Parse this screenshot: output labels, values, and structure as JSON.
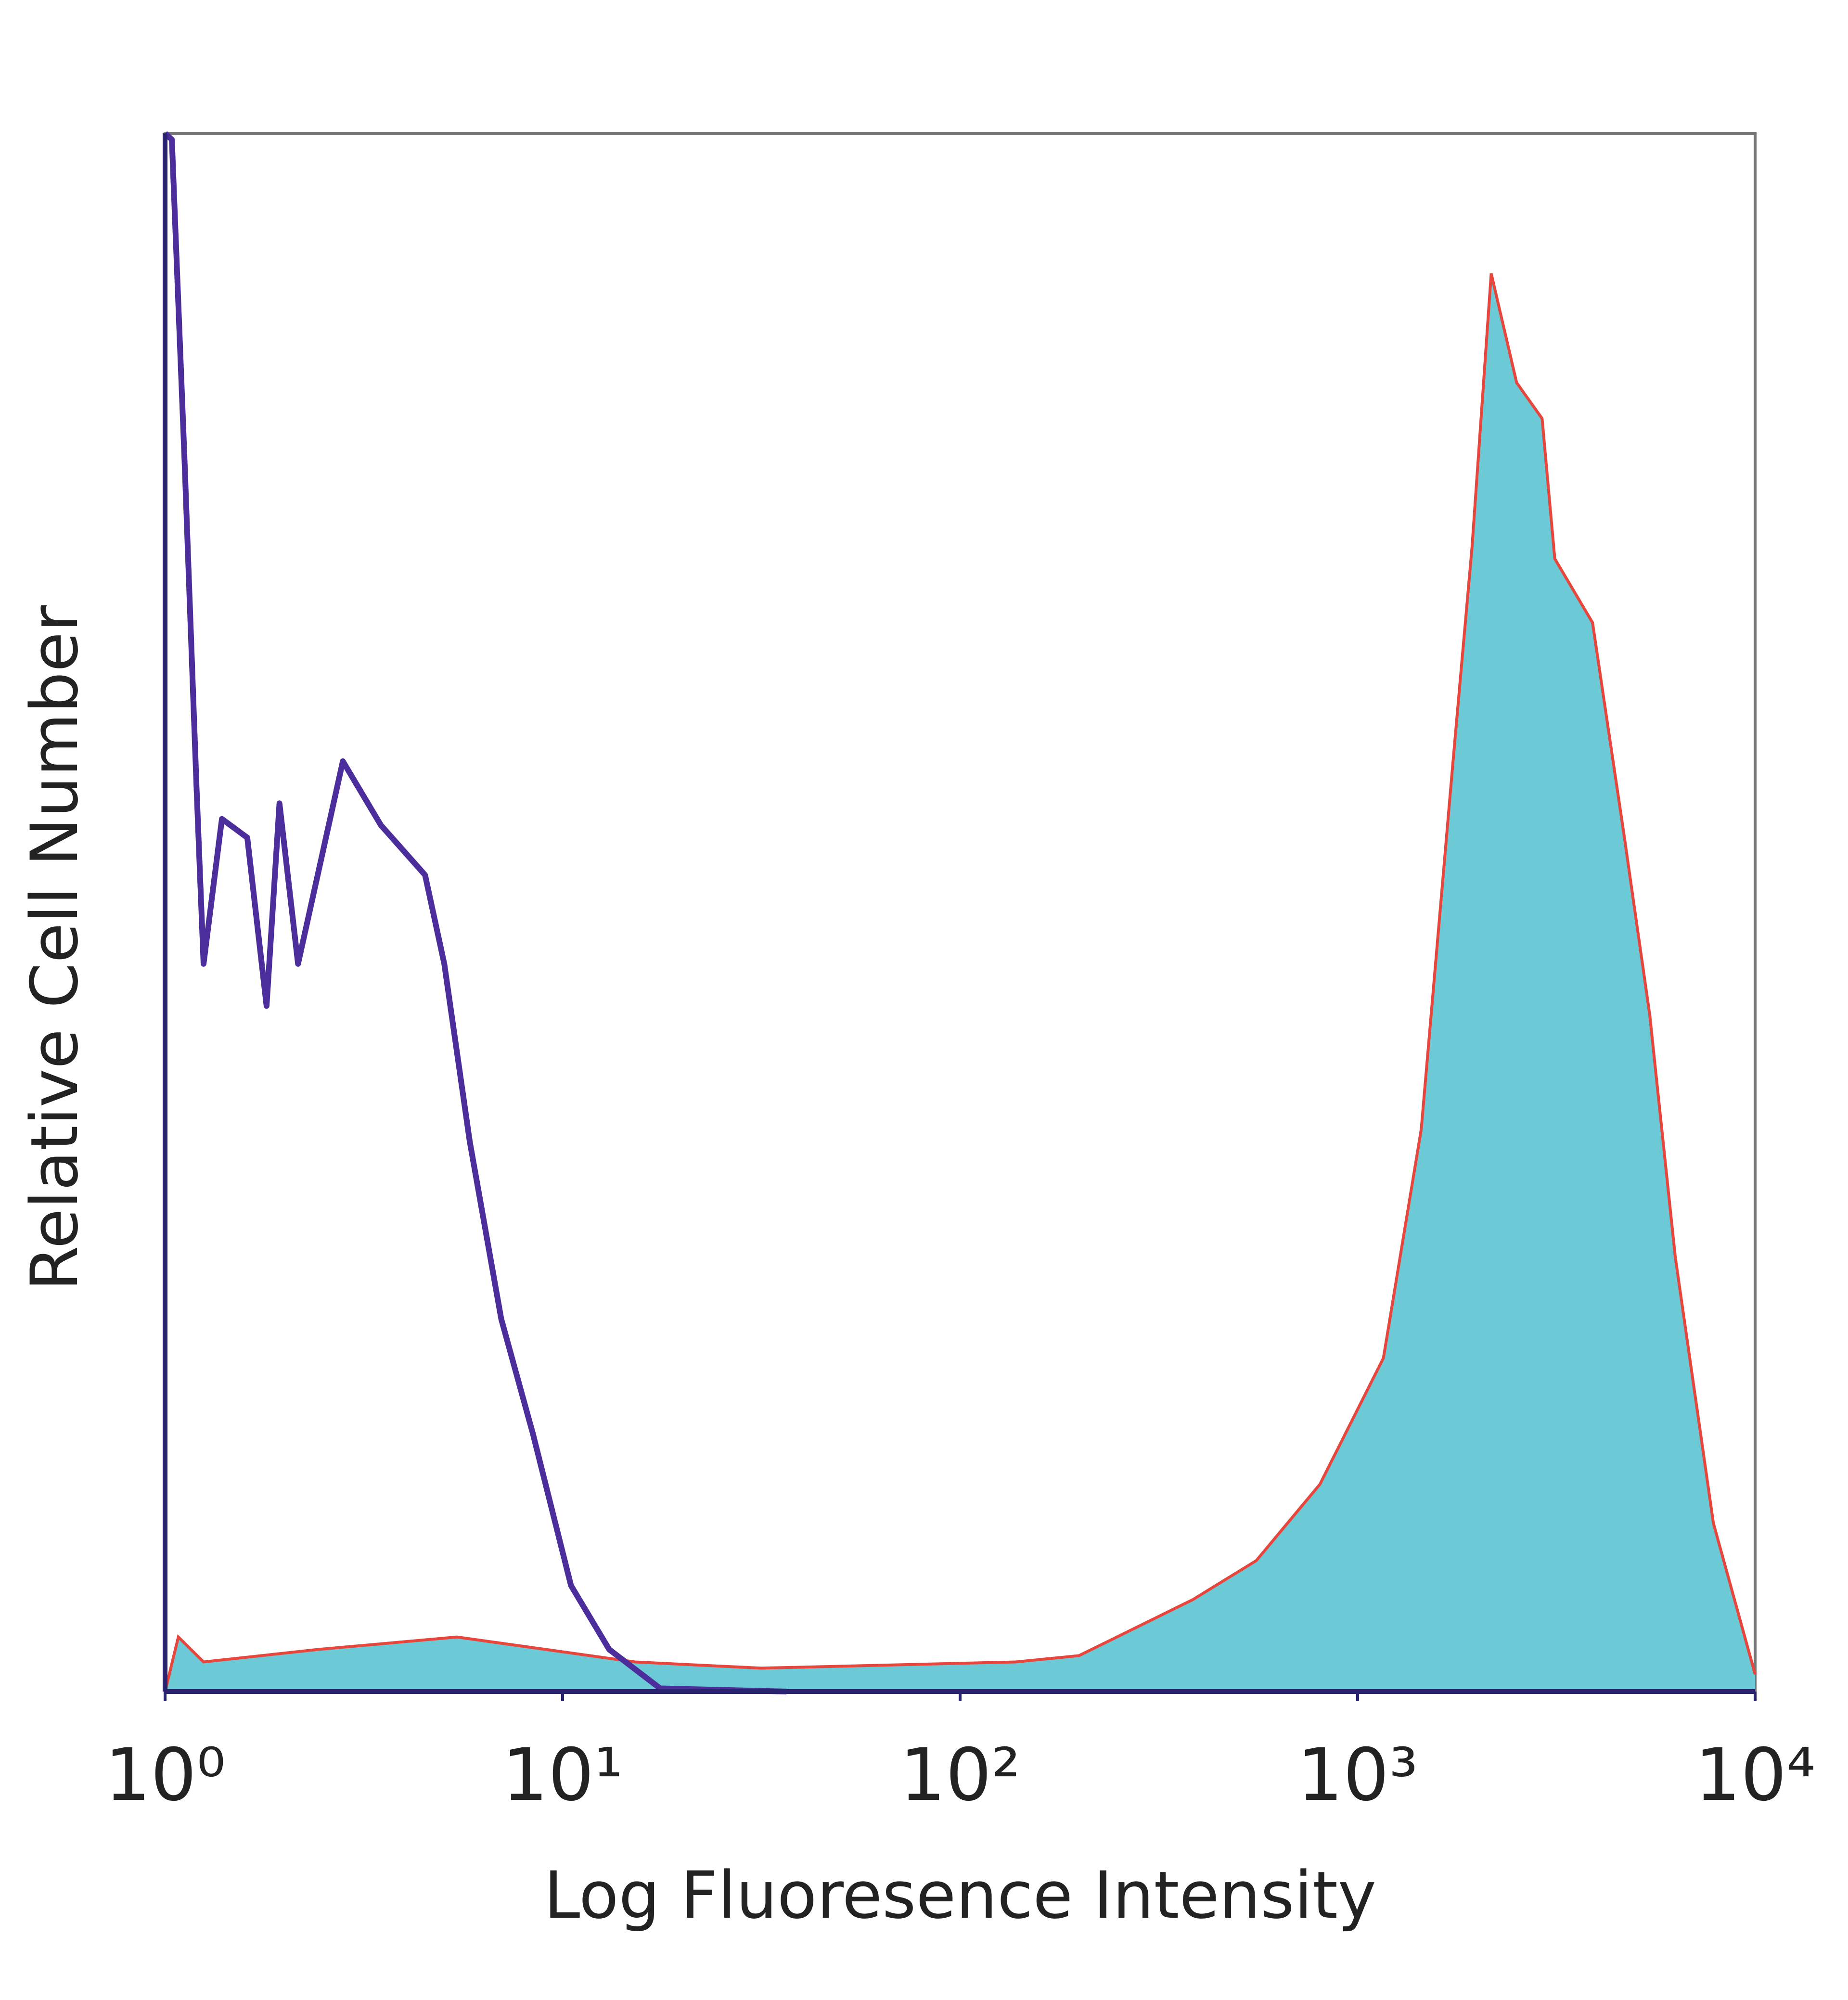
{
  "chart_data": {
    "type": "histogram-overlay",
    "xlabel": "Log Fluoresence Intensity",
    "ylabel": "Relative Cell Number",
    "xscale": "log",
    "xlim": [
      1,
      10000
    ],
    "xticks": [
      {
        "value": 1,
        "label": "10⁰"
      },
      {
        "value": 10,
        "label": "10¹"
      },
      {
        "value": 100,
        "label": "10²"
      },
      {
        "value": 1000,
        "label": "10³"
      },
      {
        "value": 10000,
        "label": "10⁴"
      }
    ],
    "ylim": [
      0,
      100
    ],
    "series": [
      {
        "kind": "area",
        "color": "#6ccad6",
        "edgecolor": "#e8453c",
        "x": [
          1,
          1.08,
          1.25,
          2.42,
          5.42,
          15.2,
          31.6,
          138,
          199,
          385,
          556,
          804,
          1161,
          1446,
          1738,
          1941,
          2168,
          2512,
          2911,
          3133,
          3899,
          4690,
          5433,
          6295,
          7852,
          10000
        ],
        "values": [
          0,
          3.5,
          1.9,
          2.7,
          3.5,
          1.9,
          1.5,
          1.9,
          2.3,
          5.9,
          8.4,
          13.3,
          21.4,
          36.1,
          59.7,
          73.5,
          91,
          84,
          81.7,
          72.7,
          68.6,
          54.8,
          43.4,
          27.9,
          10.8,
          1.1
        ]
      },
      {
        "kind": "line",
        "color": "#4b2d9b",
        "x": [
          1,
          1.04,
          1.12,
          1.2,
          1.25,
          1.39,
          1.61,
          1.8,
          1.94,
          2.16,
          2.8,
          3.49,
          4.51,
          5.04,
          5.84,
          7.01,
          8.43,
          10.5,
          13.1,
          17.6,
          36.6
        ],
        "values": [
          100,
          99.6,
          78.8,
          58,
          46.7,
          56,
          54.8,
          44,
          57,
          46.7,
          59.7,
          55.6,
          52.4,
          46.7,
          35.3,
          23.9,
          16.5,
          6.8,
          2.7,
          0.2,
          0
        ]
      }
    ]
  }
}
